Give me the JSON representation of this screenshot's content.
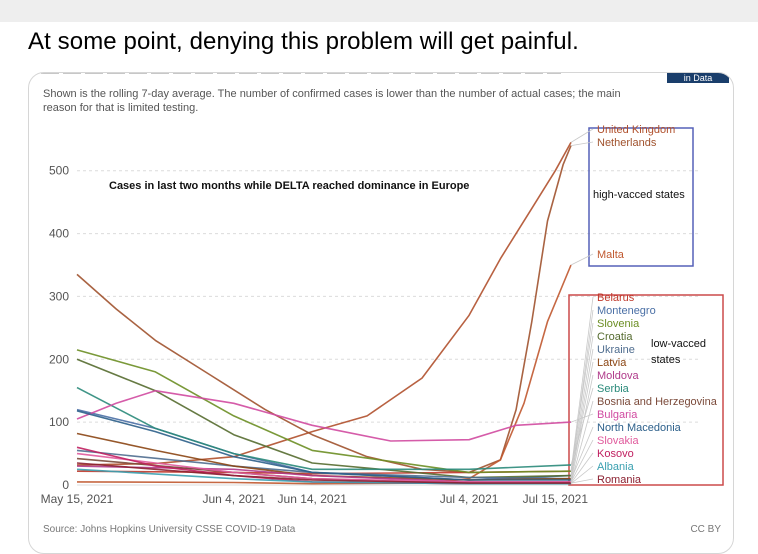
{
  "headline": "At some point, denying this problem will get painful.",
  "badge": "in Data",
  "subtitle": "Shown is the rolling 7-day average. The number of confirmed cases is lower than the number of actual cases; the main reason for that is limited testing.",
  "annotation": "Cases in last two months while DELTA reached dominance in Europe",
  "high_group_label": "high-vacced states",
  "low_group_label": "low-vacced states",
  "source": "Source: Johns Hopkins University CSSE COVID-19 Data",
  "license": "CC BY",
  "colors": {
    "high_box": "#5560b8",
    "low_box": "#cc4a4a"
  },
  "chart_data": {
    "type": "line",
    "ylim": [
      0,
      560
    ],
    "yticks": [
      0,
      100,
      200,
      300,
      400,
      500
    ],
    "xticks": [
      "May 15, 2021",
      "Jun 4, 2021",
      "Jun 14, 2021",
      "Jul 4, 2021",
      "Jul 15, 2021"
    ],
    "x_start": "2021-05-15",
    "x_end": "2021-07-17",
    "series": [
      {
        "name": "United Kingdom",
        "color": "#b0502c",
        "dates": [
          "2021-05-15",
          "2021-05-25",
          "2021-06-04",
          "2021-06-14",
          "2021-06-21",
          "2021-06-28",
          "2021-07-04",
          "2021-07-08",
          "2021-07-12",
          "2021-07-15",
          "2021-07-17"
        ],
        "values": [
          32,
          34,
          45,
          85,
          110,
          170,
          270,
          360,
          440,
          500,
          545
        ]
      },
      {
        "name": "Netherlands",
        "color": "#a0522d",
        "dates": [
          "2021-05-15",
          "2021-05-20",
          "2021-05-25",
          "2021-06-01",
          "2021-06-08",
          "2021-06-14",
          "2021-06-21",
          "2021-06-28",
          "2021-07-04",
          "2021-07-08",
          "2021-07-10",
          "2021-07-12",
          "2021-07-14",
          "2021-07-16",
          "2021-07-17"
        ],
        "values": [
          335,
          280,
          230,
          175,
          120,
          80,
          45,
          25,
          20,
          40,
          120,
          260,
          420,
          510,
          540
        ]
      },
      {
        "name": "Malta",
        "color": "#c0582f",
        "dates": [
          "2021-05-15",
          "2021-06-04",
          "2021-06-14",
          "2021-06-28",
          "2021-07-04",
          "2021-07-08",
          "2021-07-11",
          "2021-07-14",
          "2021-07-17"
        ],
        "values": [
          5,
          4,
          2,
          3,
          10,
          40,
          130,
          260,
          350
        ]
      },
      {
        "name": "Belarus",
        "color": "#c0392b",
        "dates": [
          "2021-05-15",
          "2021-06-04",
          "2021-06-14",
          "2021-07-04",
          "2021-07-17"
        ],
        "values": [
          22,
          20,
          18,
          20,
          22
        ]
      },
      {
        "name": "Montenegro",
        "color": "#4a6fa5",
        "dates": [
          "2021-05-15",
          "2021-05-25",
          "2021-06-04",
          "2021-06-14",
          "2021-07-04",
          "2021-07-17"
        ],
        "values": [
          120,
          90,
          50,
          20,
          8,
          15
        ]
      },
      {
        "name": "Slovenia",
        "color": "#6b8e23",
        "dates": [
          "2021-05-15",
          "2021-05-25",
          "2021-06-04",
          "2021-06-14",
          "2021-07-04",
          "2021-07-17"
        ],
        "values": [
          215,
          180,
          110,
          55,
          20,
          22
        ]
      },
      {
        "name": "Croatia",
        "color": "#556b2f",
        "dates": [
          "2021-05-15",
          "2021-05-25",
          "2021-06-04",
          "2021-06-14",
          "2021-07-04",
          "2021-07-17"
        ],
        "values": [
          200,
          150,
          80,
          35,
          12,
          15
        ]
      },
      {
        "name": "Ukraine",
        "color": "#4f6d8f",
        "dates": [
          "2021-05-15",
          "2021-06-04",
          "2021-06-14",
          "2021-07-04",
          "2021-07-17"
        ],
        "values": [
          55,
          30,
          20,
          12,
          10
        ]
      },
      {
        "name": "Latvia",
        "color": "#8b4513",
        "dates": [
          "2021-05-15",
          "2021-05-25",
          "2021-06-04",
          "2021-06-14",
          "2021-07-04",
          "2021-07-17"
        ],
        "values": [
          82,
          55,
          30,
          15,
          8,
          10
        ]
      },
      {
        "name": "Moldova",
        "color": "#b03a8a",
        "dates": [
          "2021-05-15",
          "2021-06-04",
          "2021-06-14",
          "2021-07-04",
          "2021-07-17"
        ],
        "values": [
          30,
          25,
          15,
          5,
          5
        ]
      },
      {
        "name": "Serbia",
        "color": "#2a8a7a",
        "dates": [
          "2021-05-15",
          "2021-05-25",
          "2021-06-04",
          "2021-06-14",
          "2021-07-04",
          "2021-07-17"
        ],
        "values": [
          155,
          90,
          50,
          25,
          25,
          32
        ]
      },
      {
        "name": "Bosnia and Herzegovina",
        "color": "#7b4a3a",
        "dates": [
          "2021-05-15",
          "2021-06-04",
          "2021-06-14",
          "2021-07-04",
          "2021-07-17"
        ],
        "values": [
          42,
          20,
          10,
          3,
          3
        ]
      },
      {
        "name": "Bulgaria",
        "color": "#d04aa0",
        "dates": [
          "2021-05-15",
          "2021-05-20",
          "2021-05-25",
          "2021-06-04",
          "2021-06-14",
          "2021-06-24",
          "2021-07-04",
          "2021-07-10",
          "2021-07-17"
        ],
        "values": [
          105,
          130,
          150,
          130,
          95,
          70,
          72,
          95,
          100
        ]
      },
      {
        "name": "North Macedonia",
        "color": "#2c5f8a",
        "dates": [
          "2021-05-15",
          "2021-05-25",
          "2021-06-04",
          "2021-06-14",
          "2021-07-04",
          "2021-07-17"
        ],
        "values": [
          118,
          85,
          45,
          20,
          8,
          8
        ]
      },
      {
        "name": "Slovakia",
        "color": "#e05a9c",
        "dates": [
          "2021-05-15",
          "2021-05-25",
          "2021-06-04",
          "2021-06-14",
          "2021-07-04",
          "2021-07-17"
        ],
        "values": [
          50,
          35,
          20,
          10,
          5,
          5
        ]
      },
      {
        "name": "Kosovo",
        "color": "#c02060",
        "dates": [
          "2021-05-15",
          "2021-05-25",
          "2021-06-04",
          "2021-06-14",
          "2021-07-04",
          "2021-07-17"
        ],
        "values": [
          60,
          30,
          15,
          5,
          2,
          3
        ]
      },
      {
        "name": "Albania",
        "color": "#3aa0b0",
        "dates": [
          "2021-05-15",
          "2021-06-04",
          "2021-06-14",
          "2021-07-04",
          "2021-07-17"
        ],
        "values": [
          25,
          10,
          5,
          2,
          2
        ]
      },
      {
        "name": "Romania",
        "color": "#8b2030",
        "dates": [
          "2021-05-15",
          "2021-06-04",
          "2021-06-14",
          "2021-07-04",
          "2021-07-17"
        ],
        "values": [
          35,
          15,
          8,
          3,
          3
        ]
      }
    ]
  }
}
